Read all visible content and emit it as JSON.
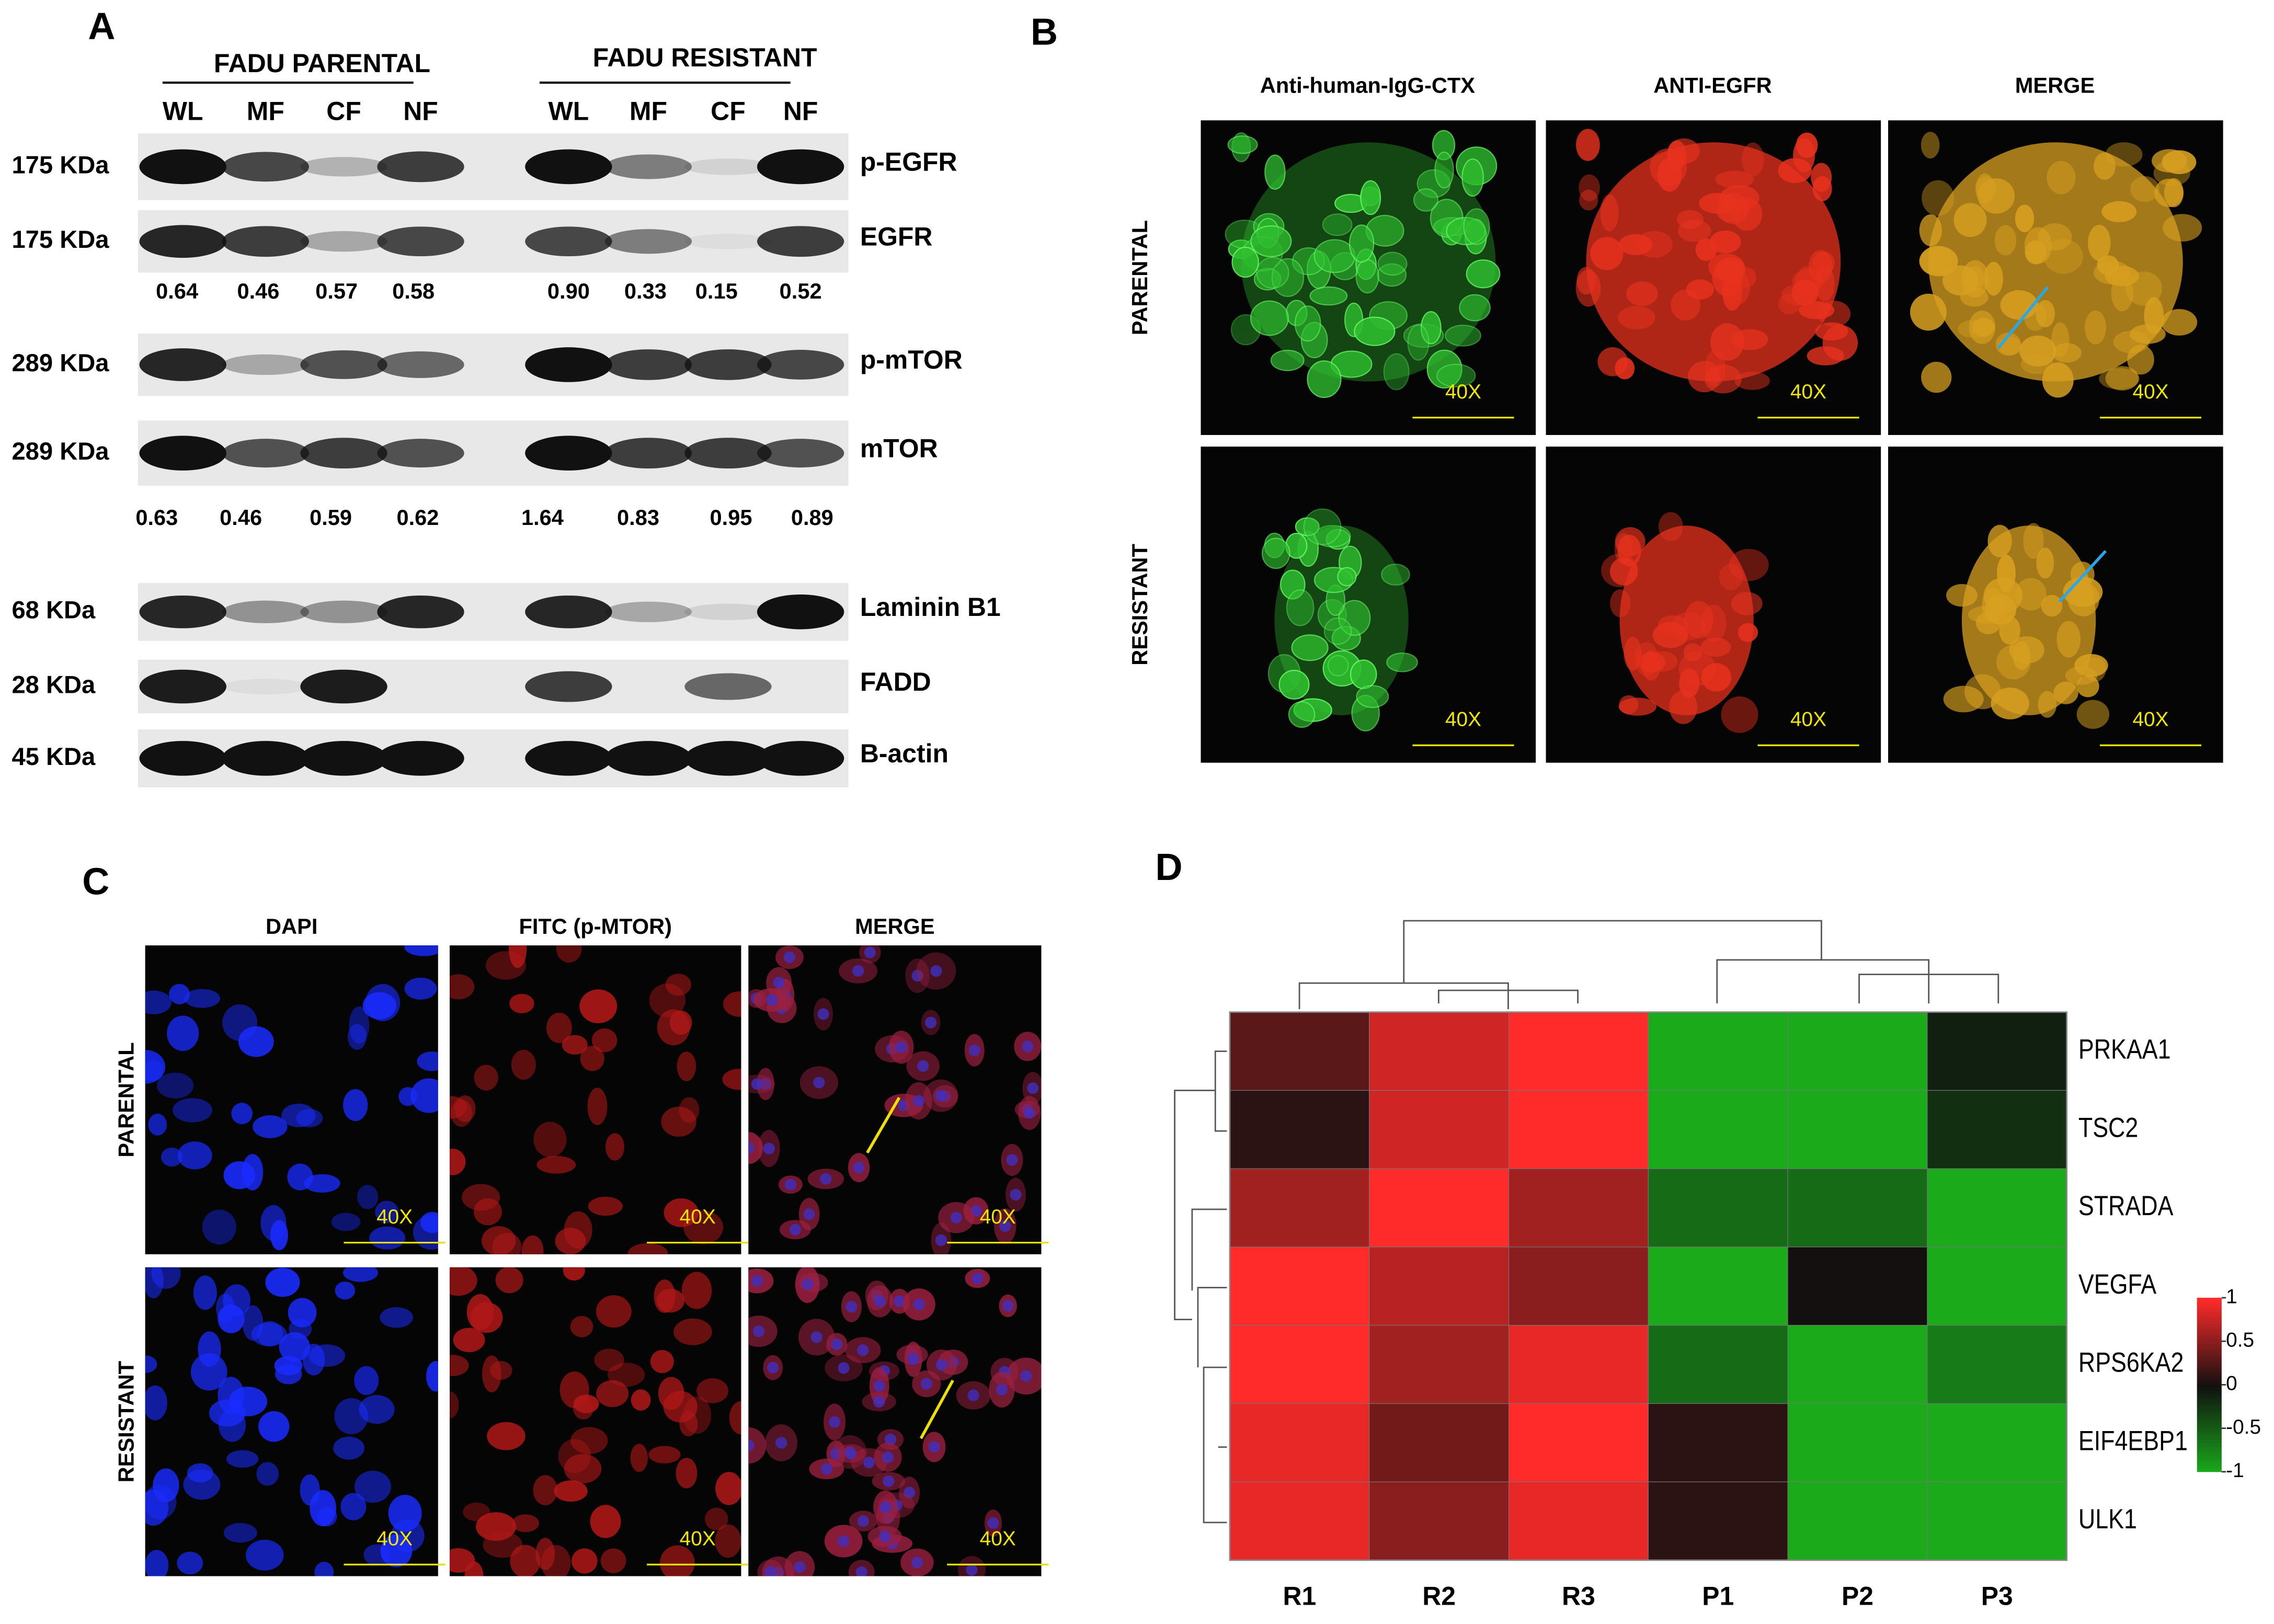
{
  "panel_a": {
    "label": "A",
    "groups": [
      "FADU PARENTAL",
      "FADU RESISTANT"
    ],
    "lanes": [
      "WL",
      "MF",
      "CF",
      "NF",
      "WL",
      "MF",
      "CF",
      "NF"
    ],
    "blots": [
      {
        "weight": "175 KDa",
        "name": "p-EGFR"
      },
      {
        "weight": "175 KDa",
        "name": "EGFR"
      },
      {
        "weight": "289 KDa",
        "name": "p-mTOR"
      },
      {
        "weight": "289 KDa",
        "name": "mTOR"
      },
      {
        "weight": "68 KDa",
        "name": "Laminin B1"
      },
      {
        "weight": "28 KDa",
        "name": "FADD"
      },
      {
        "weight": "45 KDa",
        "name": "B-actin"
      }
    ],
    "ratios": [
      [
        "0.64",
        "0.46",
        "0.57",
        "0.58",
        "0.90",
        "0.33",
        "0.15",
        "0.52"
      ],
      [
        "0.63",
        "0.46",
        "0.59",
        "0.62",
        "1.64",
        "0.83",
        "0.95",
        "0.89"
      ]
    ]
  },
  "panel_b": {
    "label": "B",
    "columns": [
      "Anti-human-IgG-CTX",
      "ANTI-EGFR",
      "MERGE"
    ],
    "rows": [
      "PARENTAL",
      "RESISTANT"
    ],
    "scale": "40X"
  },
  "panel_c": {
    "label": "C",
    "columns": [
      "DAPI",
      "FITC (p-MTOR)",
      "MERGE"
    ],
    "rows": [
      "PARENTAL",
      "RESISTANT"
    ],
    "scale": "40X"
  },
  "panel_d": {
    "label": "D",
    "genes": [
      "PRKAA1",
      "TSC2",
      "STRADA",
      "VEGFA",
      "RPS6KA2",
      "EIF4EBP1",
      "ULK1"
    ],
    "samples": [
      "R1",
      "R2",
      "R3",
      "P1",
      "P2",
      "P3"
    ],
    "values": [
      [
        0.3,
        0.8,
        1,
        -1,
        -1,
        -0.1
      ],
      [
        0.1,
        0.8,
        1,
        -1,
        -1,
        -0.2
      ],
      [
        0.6,
        1,
        0.6,
        -0.6,
        -0.6,
        -1
      ],
      [
        1,
        0.7,
        0.5,
        -1,
        0,
        -1
      ],
      [
        1,
        0.6,
        0.9,
        -0.6,
        -1,
        -0.7
      ],
      [
        0.9,
        0.4,
        1,
        0.1,
        -1,
        -1
      ],
      [
        0.9,
        0.5,
        0.9,
        0.1,
        -1,
        -1
      ]
    ],
    "colorbar_ticks": [
      1,
      0.5,
      0,
      -0.5,
      -1
    ]
  }
}
